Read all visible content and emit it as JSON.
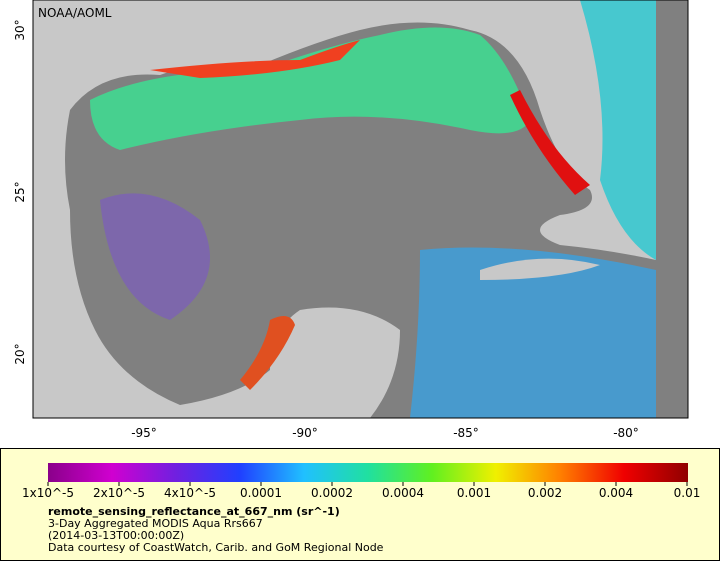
{
  "map": {
    "credit": "NOAA/AOML",
    "lat_ticks": [
      "30°",
      "25°",
      "20°"
    ],
    "lon_ticks": [
      "-95°",
      "-90°",
      "-85°",
      "-80°"
    ]
  },
  "colorbar": {
    "tick_labels": [
      "1x10^-5",
      "2x10^-5",
      "4x10^-5",
      "0.0001",
      "0.0002",
      "0.0004",
      "0.001",
      "0.002",
      "0.004",
      "0.01"
    ],
    "title": "remote_sensing_reflectance_at_667_nm (sr^-1)",
    "lines": [
      "3-Day Aggregated MODIS Aqua Rrs667",
      "(2014-03-13T00:00:00Z)",
      "Data courtesy of CoastWatch, Carib. and GoM Regional Node"
    ]
  }
}
